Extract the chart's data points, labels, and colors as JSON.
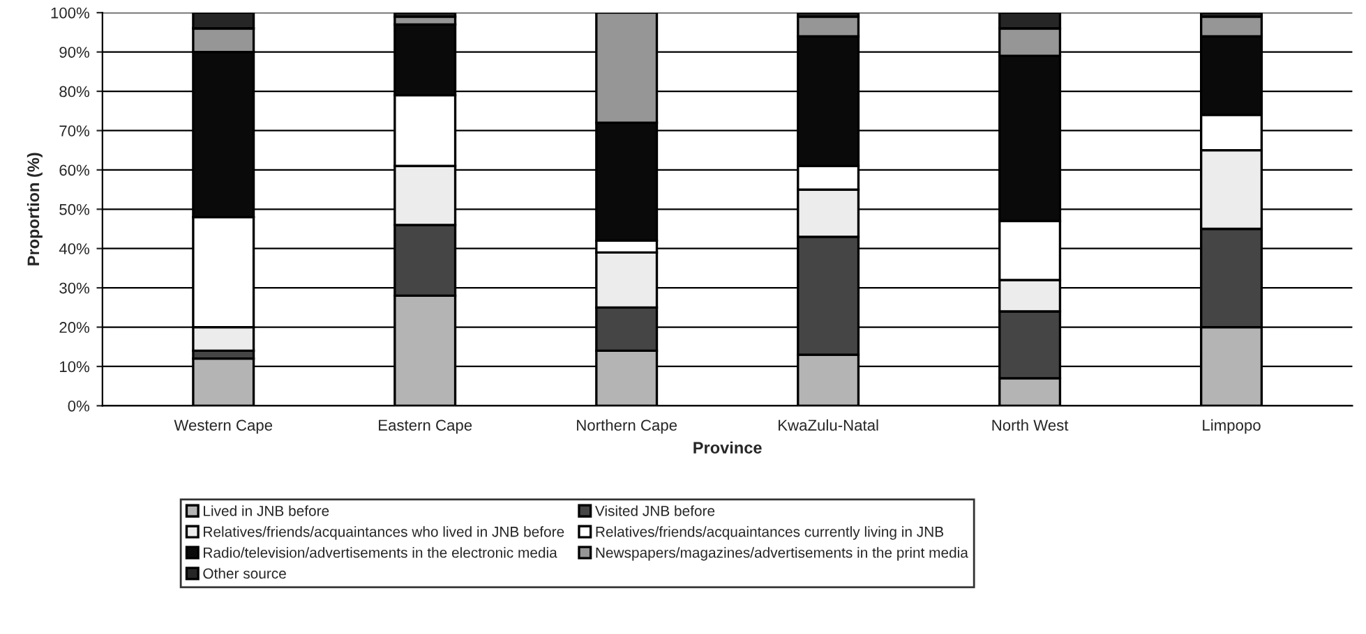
{
  "chart_data": {
    "type": "bar",
    "stacked": true,
    "xlabel": "Province",
    "ylabel": "Proportion (%)",
    "categories": [
      "Western Cape",
      "Eastern Cape",
      "Northern Cape",
      "KwaZulu-Natal",
      "North West",
      "Limpopo"
    ],
    "series": [
      {
        "name": "Lived in JNB before",
        "color": "#b4b4b4",
        "values": [
          12,
          28,
          14,
          13,
          7,
          20
        ]
      },
      {
        "name": "Visited JNB before",
        "color": "#454545",
        "values": [
          2,
          18,
          11,
          30,
          17,
          25
        ]
      },
      {
        "name": "Relatives/friends/acquaintances who lived in JNB before",
        "color": "#ececec",
        "values": [
          6,
          15,
          14,
          12,
          8,
          20
        ]
      },
      {
        "name": "Relatives/friends/acquaintances currently living in JNB",
        "color": "#ffffff",
        "values": [
          28,
          18,
          3,
          6,
          15,
          9
        ]
      },
      {
        "name": "Radio/television/advertisements in the electronic media",
        "color": "#0a0a0a",
        "values": [
          42,
          18,
          30,
          33,
          42,
          20
        ]
      },
      {
        "name": "Newspapers/magazines/advertisements in the print media",
        "color": "#969696",
        "values": [
          6,
          2,
          28,
          5,
          7,
          5
        ]
      },
      {
        "name": "Other source",
        "color": "#262626",
        "values": [
          4,
          1,
          null,
          1,
          4,
          1
        ]
      }
    ],
    "ylim": [
      0,
      100
    ],
    "yticks": [
      {
        "value": 0,
        "label": "0%"
      },
      {
        "value": 10,
        "label": "10%"
      },
      {
        "value": 20,
        "label": "20%"
      },
      {
        "value": 30,
        "label": "30%"
      },
      {
        "value": 40,
        "label": "40%"
      },
      {
        "value": 50,
        "label": "50%"
      },
      {
        "value": 60,
        "label": "60%"
      },
      {
        "value": 70,
        "label": "70%"
      },
      {
        "value": 80,
        "label": "80%"
      },
      {
        "value": 90,
        "label": "90%"
      },
      {
        "value": 100,
        "label": "100%"
      }
    ],
    "grid": "y",
    "legend": "bottom"
  }
}
